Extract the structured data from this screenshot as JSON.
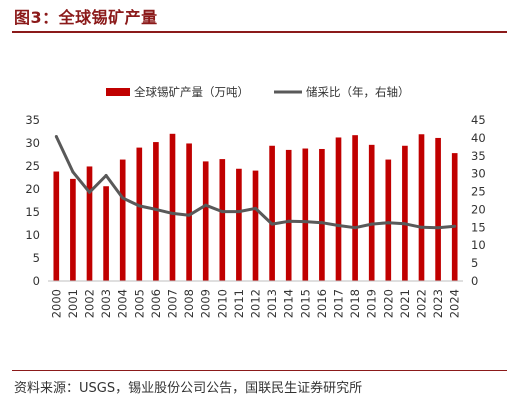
{
  "figure_title": "图3：全球锡矿产量",
  "source": "资料来源：USGS，锡业股份公司公告，国联民生证券研究所",
  "colors": {
    "bar": "#c00000",
    "line": "#595959",
    "title": "#8b1a1a"
  },
  "chart_data": {
    "type": "bar",
    "categories": [
      "2000",
      "2001",
      "2002",
      "2003",
      "2004",
      "2005",
      "2006",
      "2007",
      "2008",
      "2009",
      "2010",
      "2011",
      "2012",
      "2013",
      "2014",
      "2015",
      "2016",
      "2017",
      "2018",
      "2019",
      "2020",
      "2021",
      "2022",
      "2023",
      "2024"
    ],
    "series": [
      {
        "name": "全球锡矿产量（万吨）",
        "type": "bar",
        "axis": "left",
        "values": [
          23.8,
          22.2,
          24.9,
          20.6,
          26.4,
          29.0,
          30.2,
          32.0,
          29.9,
          26.0,
          26.5,
          24.4,
          24.0,
          29.4,
          28.5,
          28.8,
          28.7,
          31.2,
          31.7,
          29.6,
          26.4,
          29.4,
          31.9,
          31.1,
          27.8
        ]
      },
      {
        "name": "储采比（年，右轴）",
        "type": "line",
        "axis": "right",
        "values": [
          40.4,
          30.5,
          24.8,
          29.5,
          23.2,
          21.0,
          20.0,
          18.9,
          18.4,
          21.2,
          19.4,
          19.4,
          20.3,
          15.9,
          16.7,
          16.6,
          16.3,
          15.5,
          14.9,
          15.9,
          16.3,
          16.0,
          15.0,
          14.9,
          15.3
        ]
      }
    ],
    "y_left": {
      "lim": [
        0,
        35
      ],
      "ticks": [
        "0",
        "5",
        "10",
        "15",
        "20",
        "25",
        "30",
        "35"
      ]
    },
    "y_right": {
      "lim": [
        0,
        45
      ],
      "ticks": [
        "0",
        "5",
        "10",
        "15",
        "20",
        "25",
        "30",
        "35",
        "40",
        "45"
      ]
    },
    "grid": false,
    "legend_position": "top-center"
  }
}
